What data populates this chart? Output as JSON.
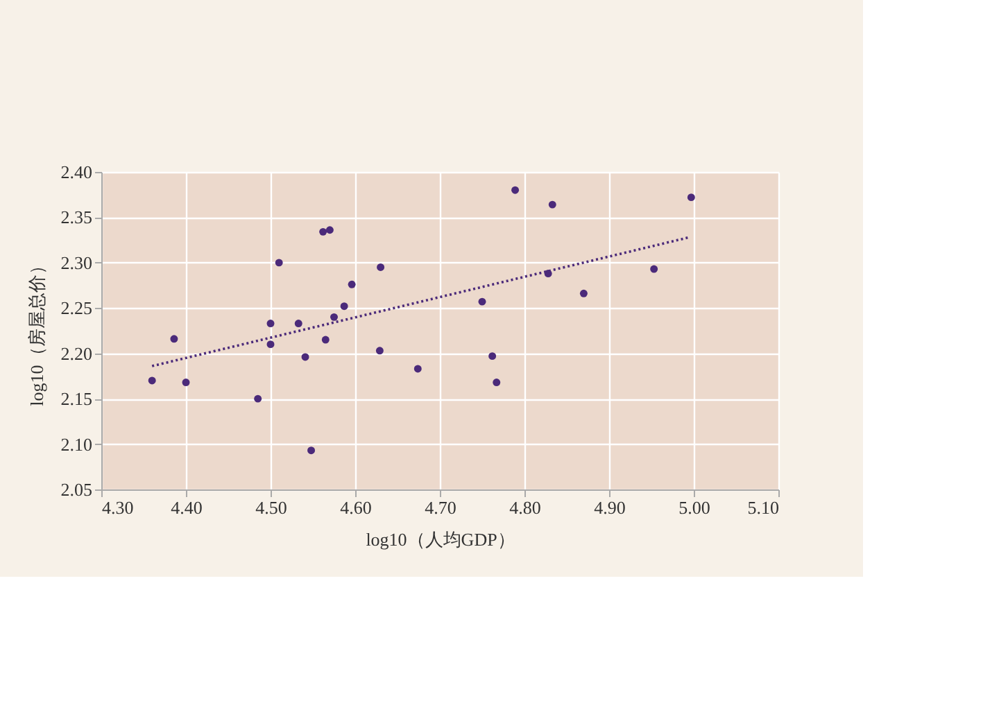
{
  "chart_data": {
    "type": "scatter",
    "xlabel": "log10（人均GDP）",
    "ylabel": "log10（房屋总价）",
    "xlim": [
      4.3,
      5.1
    ],
    "xticks": [
      {
        "value": 4.3,
        "label": "4.30"
      },
      {
        "value": 4.4,
        "label": "4.40"
      },
      {
        "value": 4.5,
        "label": "4.50"
      },
      {
        "value": 4.6,
        "label": "4.60"
      },
      {
        "value": 4.7,
        "label": "4.70"
      },
      {
        "value": 4.8,
        "label": "4.80"
      },
      {
        "value": 4.9,
        "label": "4.90"
      },
      {
        "value": 5.0,
        "label": "5.00"
      },
      {
        "value": 5.1,
        "label": "5.10"
      }
    ],
    "ylim": [
      2.05,
      2.4
    ],
    "yticks": [
      {
        "value": 2.05,
        "label": "2.05"
      },
      {
        "value": 2.1,
        "label": "2.10"
      },
      {
        "value": 2.15,
        "label": "2.15"
      },
      {
        "value": 2.2,
        "label": "2.20"
      },
      {
        "value": 2.25,
        "label": "2.25"
      },
      {
        "value": 2.3,
        "label": "2.30"
      },
      {
        "value": 2.35,
        "label": "2.35"
      },
      {
        "value": 2.4,
        "label": "2.40"
      }
    ],
    "grid": true,
    "legend": false,
    "series": [
      {
        "color": "#4b2a7a",
        "marker": "circle",
        "x": [
          4.36,
          4.386,
          4.4,
          4.485,
          4.5,
          4.5,
          4.51,
          4.533,
          4.541,
          4.548,
          4.562,
          4.57,
          4.565,
          4.575,
          4.587,
          4.596,
          4.63,
          4.629,
          4.674,
          4.75,
          4.762,
          4.767,
          4.789,
          4.828,
          4.833,
          4.87,
          4.953,
          4.997
        ],
        "values": [
          2.17,
          2.216,
          2.168,
          2.15,
          2.21,
          2.233,
          2.3,
          2.233,
          2.196,
          2.093,
          2.334,
          2.336,
          2.215,
          2.24,
          2.252,
          2.276,
          2.295,
          2.203,
          2.183,
          2.257,
          2.197,
          2.168,
          2.38,
          2.288,
          2.364,
          2.266,
          2.293,
          2.372
        ]
      },
      {
        "type": "line",
        "color": "#4b2a7a",
        "line_style": "dotted",
        "marker": "none",
        "x": [
          4.36,
          4.995
        ],
        "values": [
          2.186,
          2.328
        ]
      }
    ]
  }
}
